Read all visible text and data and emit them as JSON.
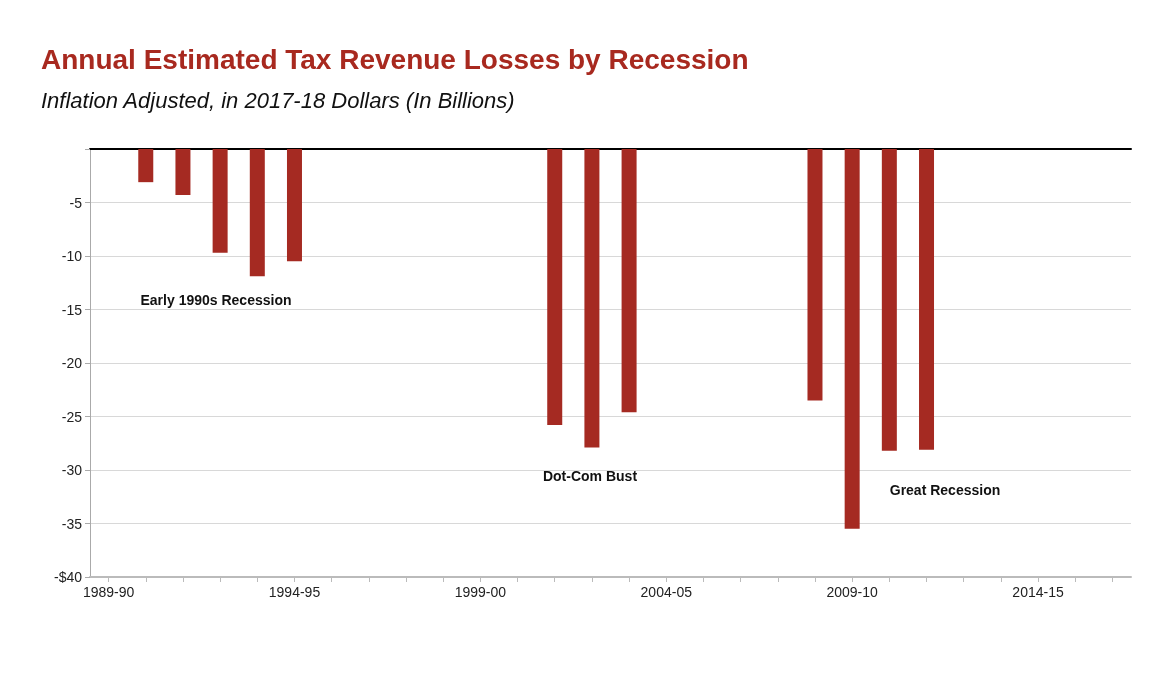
{
  "chart_data": {
    "type": "bar",
    "title": "Annual Estimated Tax Revenue Losses by Recession",
    "subtitle": "Inflation Adjusted, in 2017-18 Dollars (In Billions)",
    "categories": [
      "1989-90",
      null,
      null,
      null,
      null,
      "1994-95",
      null,
      null,
      null,
      null,
      "1999-00",
      null,
      null,
      null,
      null,
      "2004-05",
      null,
      null,
      null,
      null,
      "2009-10",
      null,
      null,
      null,
      null,
      "2014-15",
      null,
      null
    ],
    "values": [
      null,
      -3.1,
      -4.3,
      -9.7,
      -11.9,
      -10.5,
      null,
      null,
      null,
      null,
      null,
      null,
      -25.8,
      -27.9,
      -24.6,
      null,
      null,
      null,
      null,
      -23.5,
      -35.5,
      -28.2,
      -28.1,
      null,
      null,
      null,
      null,
      null
    ],
    "color": "#a52a22",
    "ylim": [
      -40,
      0
    ],
    "yticks": [
      {
        "value": -40,
        "label": "-$40"
      },
      -35,
      -30,
      -25,
      -20,
      -15,
      -10,
      -5,
      {
        "value": 0,
        "label": null
      }
    ],
    "grid": "y",
    "annotations": [
      "Early 1990s Recession",
      "Dot-Com Bust",
      "Great Recession"
    ]
  }
}
